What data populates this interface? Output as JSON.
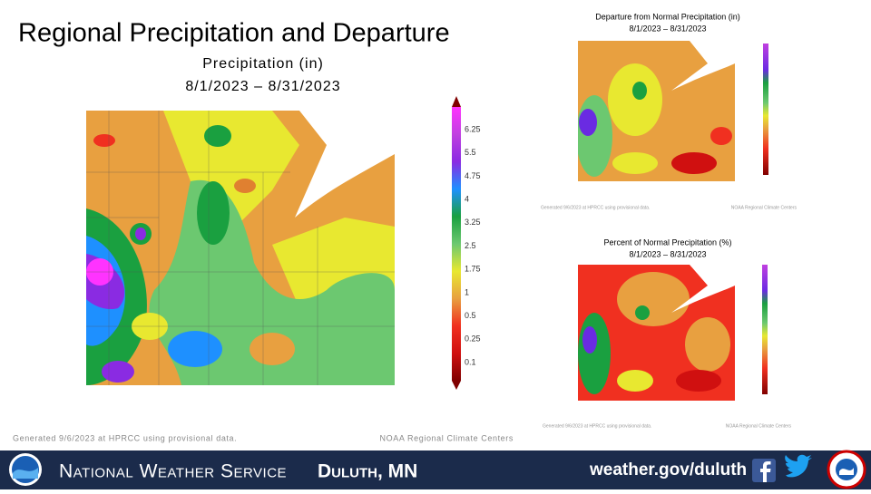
{
  "header": {
    "title": "Regional Precipitation and Departure"
  },
  "main_map": {
    "title": "Precipitation (in)",
    "date_range": "8/1/2023 – 8/31/2023",
    "legend": [
      "6.25",
      "5.5",
      "4.75",
      "4",
      "3.25",
      "2.5",
      "1.75",
      "1",
      "0.5",
      "0.25",
      "0.1"
    ],
    "footer_left": "Generated 9/6/2023 at HPRCC using provisional data.",
    "footer_right": "NOAA Regional Climate Centers"
  },
  "departure_map": {
    "title": "Departure from Normal Precipitation (in)",
    "date_range": "8/1/2023 – 8/31/2023",
    "footer_left": "Generated 9/6/2023 at HPRCC using provisional data.",
    "footer_right": "NOAA Regional Climate Centers"
  },
  "percent_map": {
    "title": "Percent of Normal Precipitation (%)",
    "date_range": "8/1/2023 – 8/31/2023",
    "footer_left": "Generated 9/6/2023 at HPRCC using provisional data.",
    "footer_right": "NOAA Regional Climate Centers"
  },
  "footer": {
    "office_prefix": "National Weather Service",
    "office": "Duluth, MN",
    "url": "weather.gov/duluth"
  }
}
